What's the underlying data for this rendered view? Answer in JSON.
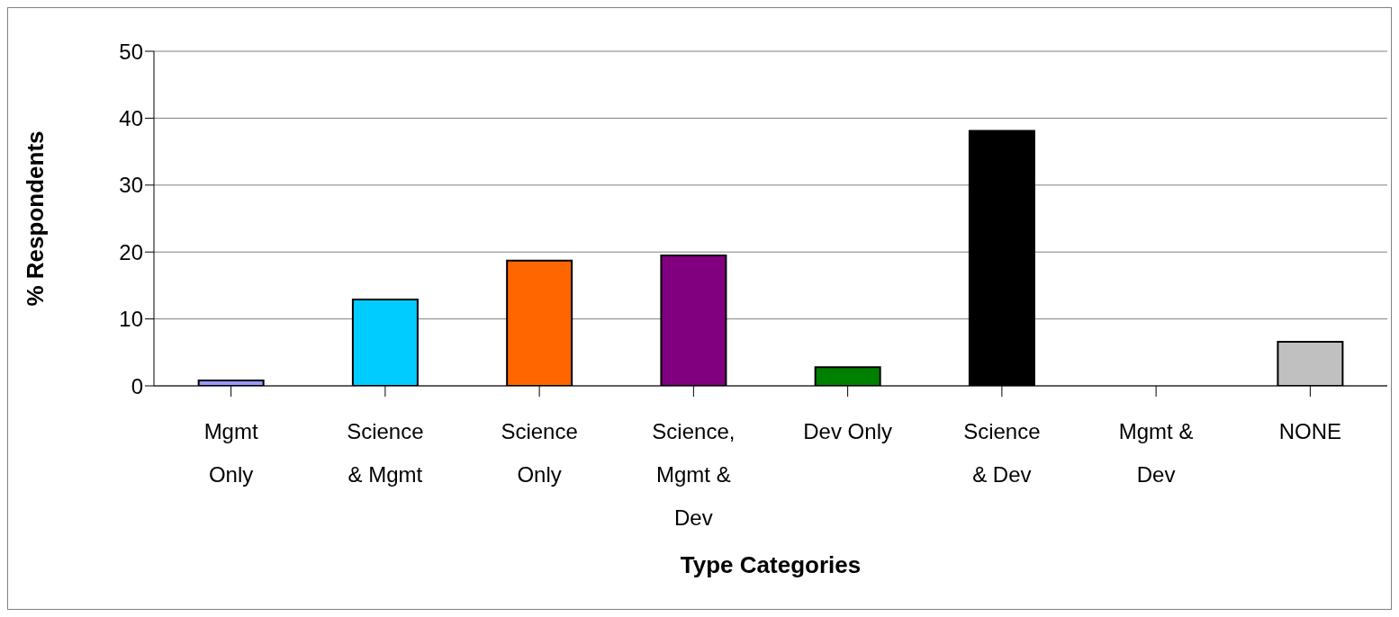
{
  "chart_data": {
    "type": "bar",
    "xlabel": "Type Categories",
    "ylabel": "% Respondents",
    "categories": [
      "Mgmt Only",
      "Science & Mgmt",
      "Science Only",
      "Science, Mgmt & Dev",
      "Dev Only",
      "Science & Dev",
      "Mgmt & Dev",
      "NONE"
    ],
    "values": [
      0.8,
      12.9,
      18.7,
      19.5,
      2.8,
      38.1,
      0,
      6.6
    ],
    "colors": [
      "#9999ff",
      "#00ccff",
      "#ff6600",
      "#800080",
      "#008000",
      "#000000",
      "#993366",
      "#c0c0c0"
    ],
    "ylim": [
      0,
      50
    ],
    "yticks": [
      0,
      10,
      20,
      30,
      40,
      50
    ],
    "grid": "y",
    "legend": false
  }
}
